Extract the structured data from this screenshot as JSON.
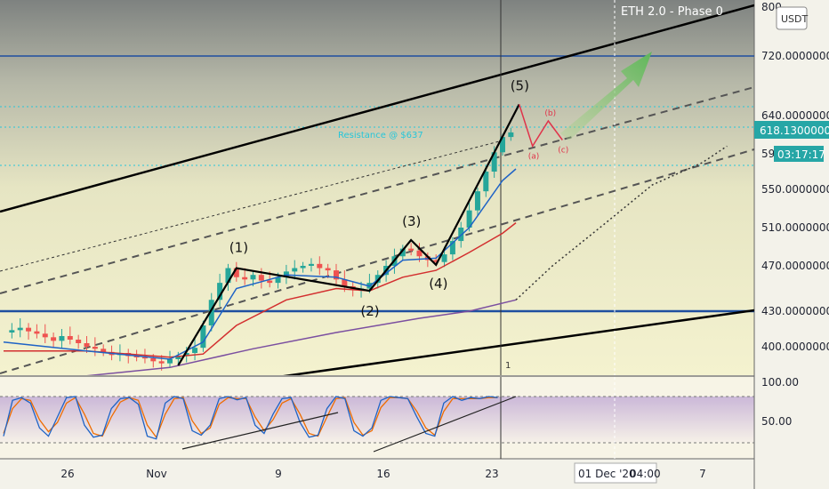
{
  "chart_data": {
    "type": "candlestick",
    "symbol_currency": "USDT",
    "annotation_title": "ETH 2.0 - Phase 0",
    "resistance_label": "Resistance @ $637",
    "y_ticks": [
      "800",
      "720.0000000",
      "640.0000000",
      "590",
      "550.0000000",
      "510.0000000",
      "470.0000000",
      "430.0000000",
      "400.0000000"
    ],
    "last_price": "618.1300000",
    "countdown": "03:17:17",
    "x_ticks": [
      "26",
      "Nov",
      "9",
      "16",
      "23",
      "7"
    ],
    "x_cursor_label": "01 Dec '20",
    "x_cursor_time": "04:00",
    "cursor_bar_label": "1",
    "osc_ticks": [
      "100.00",
      "50.00"
    ],
    "wave_labels": [
      "(1)",
      "(2)",
      "(3)",
      "(4)",
      "(5)"
    ],
    "correction_labels": [
      "(a)",
      "(b)",
      "(c)"
    ],
    "ylim": [
      370,
      800
    ],
    "price_path": [
      [
        0,
        412
      ],
      [
        1,
        414
      ],
      [
        2,
        416
      ],
      [
        3,
        413
      ],
      [
        4,
        411
      ],
      [
        5,
        408
      ],
      [
        6,
        405
      ],
      [
        7,
        409
      ],
      [
        8,
        406
      ],
      [
        9,
        403
      ],
      [
        10,
        400
      ],
      [
        11,
        398
      ],
      [
        12,
        395
      ],
      [
        13,
        392
      ],
      [
        14,
        394
      ],
      [
        15,
        391
      ],
      [
        16,
        390
      ],
      [
        17,
        389
      ],
      [
        18,
        386
      ],
      [
        19,
        384
      ],
      [
        20,
        388
      ],
      [
        21,
        391
      ],
      [
        22,
        394
      ],
      [
        23,
        399
      ],
      [
        24,
        418
      ],
      [
        25,
        440
      ],
      [
        26,
        455
      ],
      [
        27,
        468
      ],
      [
        28,
        460
      ],
      [
        29,
        458
      ],
      [
        30,
        462
      ],
      [
        31,
        457
      ],
      [
        32,
        455
      ],
      [
        33,
        460
      ],
      [
        34,
        465
      ],
      [
        35,
        468
      ],
      [
        36,
        470
      ],
      [
        37,
        472
      ],
      [
        38,
        468
      ],
      [
        39,
        466
      ],
      [
        40,
        458
      ],
      [
        41,
        452
      ],
      [
        42,
        449
      ],
      [
        43,
        450
      ],
      [
        44,
        455
      ],
      [
        45,
        462
      ],
      [
        46,
        470
      ],
      [
        47,
        480
      ],
      [
        48,
        488
      ],
      [
        49,
        486
      ],
      [
        50,
        480
      ],
      [
        51,
        476
      ],
      [
        52,
        474
      ],
      [
        53,
        482
      ],
      [
        54,
        496
      ],
      [
        55,
        510
      ],
      [
        56,
        528
      ],
      [
        57,
        548
      ],
      [
        58,
        570
      ],
      [
        59,
        592
      ],
      [
        60,
        612
      ],
      [
        61,
        618
      ]
    ],
    "wave_path": [
      [
        21,
        382
      ],
      [
        28,
        468
      ],
      [
        44,
        448
      ],
      [
        49,
        497
      ],
      [
        52,
        471
      ],
      [
        62,
        655
      ]
    ],
    "correction_path": [
      [
        62,
        655
      ],
      [
        63.6,
        600
      ],
      [
        65.5,
        633
      ],
      [
        67.2,
        608
      ]
    ],
    "ema_fast": [
      [
        0,
        404
      ],
      [
        10,
        396
      ],
      [
        20,
        388
      ],
      [
        24,
        404
      ],
      [
        28,
        450
      ],
      [
        34,
        462
      ],
      [
        40,
        460
      ],
      [
        44,
        452
      ],
      [
        48,
        476
      ],
      [
        52,
        478
      ],
      [
        56,
        510
      ],
      [
        60,
        560
      ],
      [
        61.6,
        573
      ]
    ],
    "ema_slow": [
      [
        0,
        396
      ],
      [
        10,
        396
      ],
      [
        20,
        390
      ],
      [
        24,
        393
      ],
      [
        28,
        418
      ],
      [
        34,
        440
      ],
      [
        40,
        450
      ],
      [
        44,
        448
      ],
      [
        48,
        460
      ],
      [
        52,
        466
      ],
      [
        56,
        484
      ],
      [
        60,
        504
      ],
      [
        61.6,
        515
      ]
    ],
    "sma_200": [
      [
        0,
        372
      ],
      [
        10,
        372
      ],
      [
        20,
        380
      ],
      [
        30,
        398
      ],
      [
        40,
        412
      ],
      [
        50,
        424
      ],
      [
        56,
        430
      ],
      [
        61.6,
        440
      ]
    ],
    "projection_path": [
      [
        61.6,
        440
      ],
      [
        66,
        470
      ],
      [
        72,
        512
      ],
      [
        78,
        555
      ],
      [
        84,
        580
      ],
      [
        87,
        600
      ]
    ],
    "osc_k": [
      20,
      85,
      90,
      80,
      35,
      20,
      55,
      90,
      92,
      40,
      18,
      22,
      70,
      88,
      90,
      78,
      20,
      15,
      80,
      92,
      88,
      30,
      22,
      40,
      88,
      92,
      86,
      90,
      40,
      25,
      60,
      88,
      90,
      45,
      18,
      22,
      70,
      92,
      88,
      30,
      20,
      35,
      85,
      92,
      90,
      88,
      55,
      25,
      20,
      80,
      92,
      85,
      90,
      88,
      92,
      90
    ],
    "osc_d": [
      25,
      70,
      88,
      85,
      50,
      28,
      45,
      80,
      90,
      60,
      25,
      20,
      55,
      82,
      90,
      85,
      40,
      18,
      60,
      88,
      90,
      48,
      25,
      35,
      78,
      90,
      88,
      88,
      55,
      30,
      50,
      80,
      88,
      60,
      25,
      20,
      55,
      88,
      90,
      45,
      22,
      30,
      72,
      90,
      90,
      88,
      65,
      35,
      22,
      65,
      88,
      88,
      88,
      88,
      90,
      90
    ],
    "sell_line_y": 720,
    "support_line_y": 430
  }
}
